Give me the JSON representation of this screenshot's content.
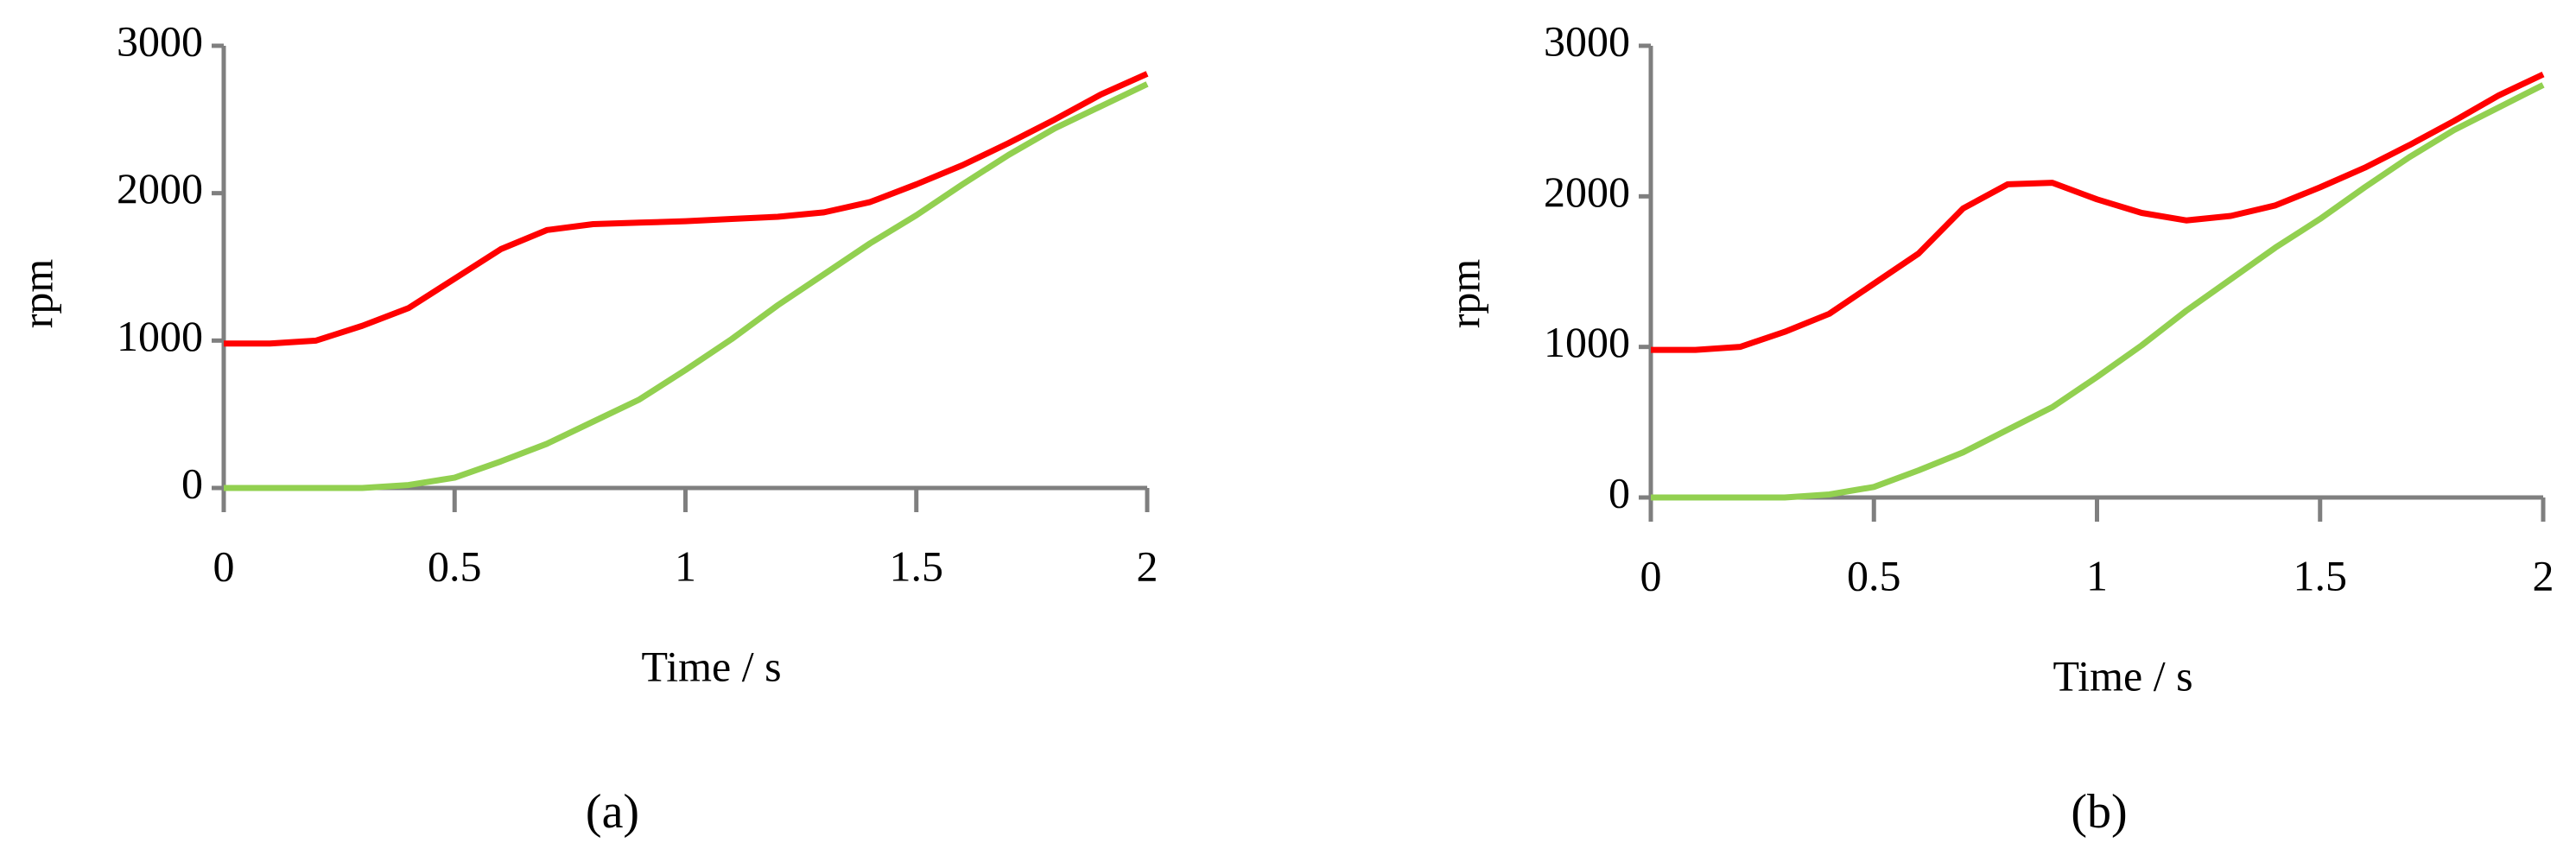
{
  "chart_data": [
    {
      "type": "line",
      "panel_label": "(a)",
      "xlabel": "Time / s",
      "ylabel": "rpm",
      "x": [
        0,
        0.1,
        0.2,
        0.3,
        0.4,
        0.5,
        0.6,
        0.7,
        0.8,
        0.9,
        1.0,
        1.1,
        1.2,
        1.3,
        1.4,
        1.5,
        1.6,
        1.7,
        1.8,
        1.9,
        2.0
      ],
      "series": [
        {
          "color": "#ff0000",
          "values": [
            980,
            980,
            1000,
            1100,
            1220,
            1420,
            1620,
            1750,
            1790,
            1800,
            1810,
            1825,
            1840,
            1870,
            1940,
            2060,
            2190,
            2340,
            2500,
            2670,
            2810
          ]
        },
        {
          "color": "#92d050",
          "values": [
            0,
            0,
            0,
            0,
            20,
            70,
            180,
            300,
            450,
            600,
            800,
            1010,
            1240,
            1450,
            1660,
            1850,
            2060,
            2260,
            2440,
            2590,
            2740
          ]
        }
      ],
      "xlim": [
        0,
        2
      ],
      "xticks": [
        0,
        0.5,
        1,
        1.5,
        2
      ],
      "ylim": [
        0,
        3000
      ],
      "yticks": [
        0,
        1000,
        2000,
        3000
      ],
      "grid": false
    },
    {
      "type": "line",
      "panel_label": "(b)",
      "xlabel": "Time / s",
      "ylabel": "rpm",
      "x": [
        0,
        0.1,
        0.2,
        0.3,
        0.4,
        0.5,
        0.6,
        0.7,
        0.8,
        0.9,
        1.0,
        1.1,
        1.2,
        1.3,
        1.4,
        1.5,
        1.6,
        1.7,
        1.8,
        1.9,
        2.0
      ],
      "series": [
        {
          "color": "#ff0000",
          "values": [
            980,
            980,
            1000,
            1100,
            1220,
            1420,
            1620,
            1920,
            2080,
            2090,
            1980,
            1890,
            1840,
            1870,
            1940,
            2060,
            2190,
            2340,
            2500,
            2670,
            2810
          ]
        },
        {
          "color": "#92d050",
          "values": [
            0,
            0,
            0,
            0,
            20,
            70,
            180,
            300,
            450,
            600,
            800,
            1010,
            1240,
            1450,
            1660,
            1850,
            2060,
            2260,
            2440,
            2590,
            2740
          ]
        }
      ],
      "xlim": [
        0,
        2
      ],
      "xticks": [
        0,
        0.5,
        1,
        1.5,
        2
      ],
      "ylim": [
        0,
        3000
      ],
      "yticks": [
        0,
        1000,
        2000,
        3000
      ],
      "grid": false
    }
  ]
}
